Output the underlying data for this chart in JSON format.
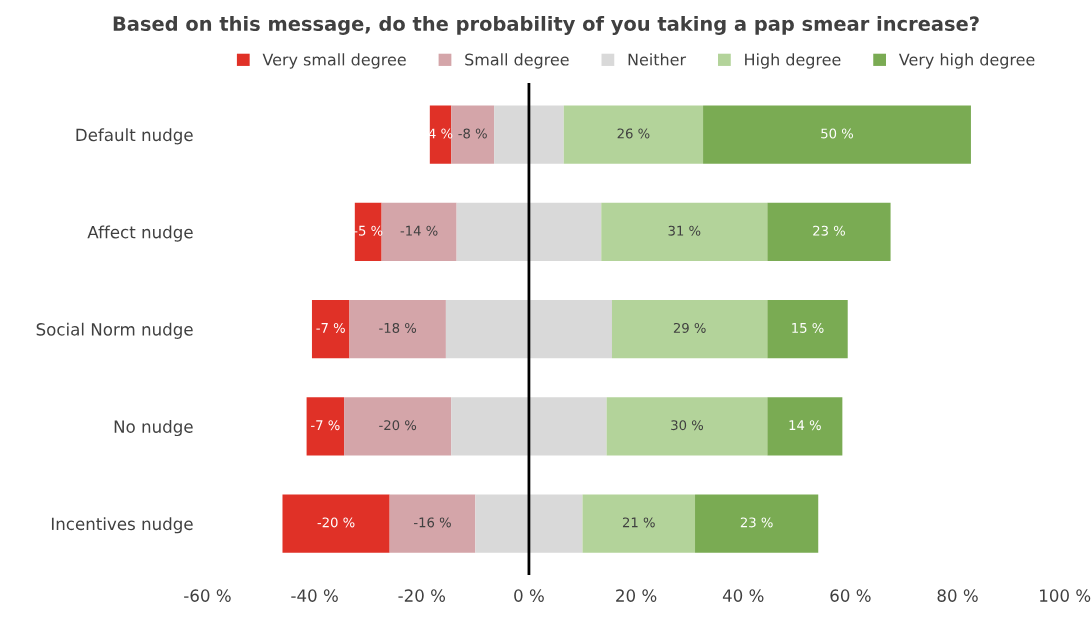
{
  "chart_data": {
    "type": "bar",
    "orientation": "horizontal",
    "title": "Based on this message, do the probability of you taking a pap smear increase?",
    "categories": [
      "Default nudge",
      "Affect nudge",
      "Social Norm nudge",
      "No nudge",
      "Incentives nudge"
    ],
    "series": [
      {
        "name": "Very small degree",
        "color": "#e03127",
        "base": [
          -14.5,
          -27.5,
          -33.5,
          -34.5,
          -26
        ],
        "values": [
          -4,
          -5,
          -7,
          -7,
          -20
        ],
        "value_labels": [
          "4 %",
          "-5 %",
          "-7 %",
          "-7 %",
          "-20 %"
        ]
      },
      {
        "name": "Small degree",
        "color": "#d4a5a9",
        "base": [
          -6.5,
          -13.5,
          -15.5,
          -14.5,
          -10
        ],
        "values": [
          -8,
          -14,
          -18,
          -20,
          -16
        ],
        "value_labels": [
          "-8 %",
          "-14 %",
          "-18 %",
          "-20 %",
          "-16 %"
        ]
      },
      {
        "name": "Neither",
        "color": "#d9d9d9",
        "base": [
          -6.5,
          -13.5,
          -15.5,
          -14.5,
          -10
        ],
        "values": [
          13,
          27,
          31,
          29,
          20
        ]
      },
      {
        "name": "High degree",
        "color": "#b3d39a",
        "base": [
          6.5,
          13.5,
          15.5,
          14.5,
          10
        ],
        "values": [
          26,
          31,
          29,
          30,
          21
        ],
        "value_labels": [
          "26 %",
          "31 %",
          "29 %",
          "30 %",
          "21 %"
        ]
      },
      {
        "name": "Very high degree",
        "color": "#7aab53",
        "base": [
          32.5,
          44.5,
          44.5,
          44.5,
          31
        ],
        "values": [
          50,
          23,
          15,
          14,
          23
        ],
        "value_labels": [
          "50 %",
          "23 %",
          "15 %",
          "14 %",
          "23 %"
        ]
      }
    ],
    "xlim": [
      -60,
      100
    ],
    "xticks": [
      {
        "value": -60,
        "label": "-60 %"
      },
      {
        "value": -40,
        "label": "-40 %"
      },
      {
        "value": -20,
        "label": "-20 %"
      },
      {
        "value": 0,
        "label": "0 %"
      },
      {
        "value": 20,
        "label": "20 %"
      },
      {
        "value": 40,
        "label": "40 %"
      },
      {
        "value": 60,
        "label": "60 %"
      },
      {
        "value": 80,
        "label": "80 %"
      },
      {
        "value": 100,
        "label": "100 %"
      }
    ],
    "ref_lines": [
      {
        "axis": "x",
        "value": 0,
        "color": "#000000"
      }
    ],
    "grid": false,
    "legend": "top"
  }
}
